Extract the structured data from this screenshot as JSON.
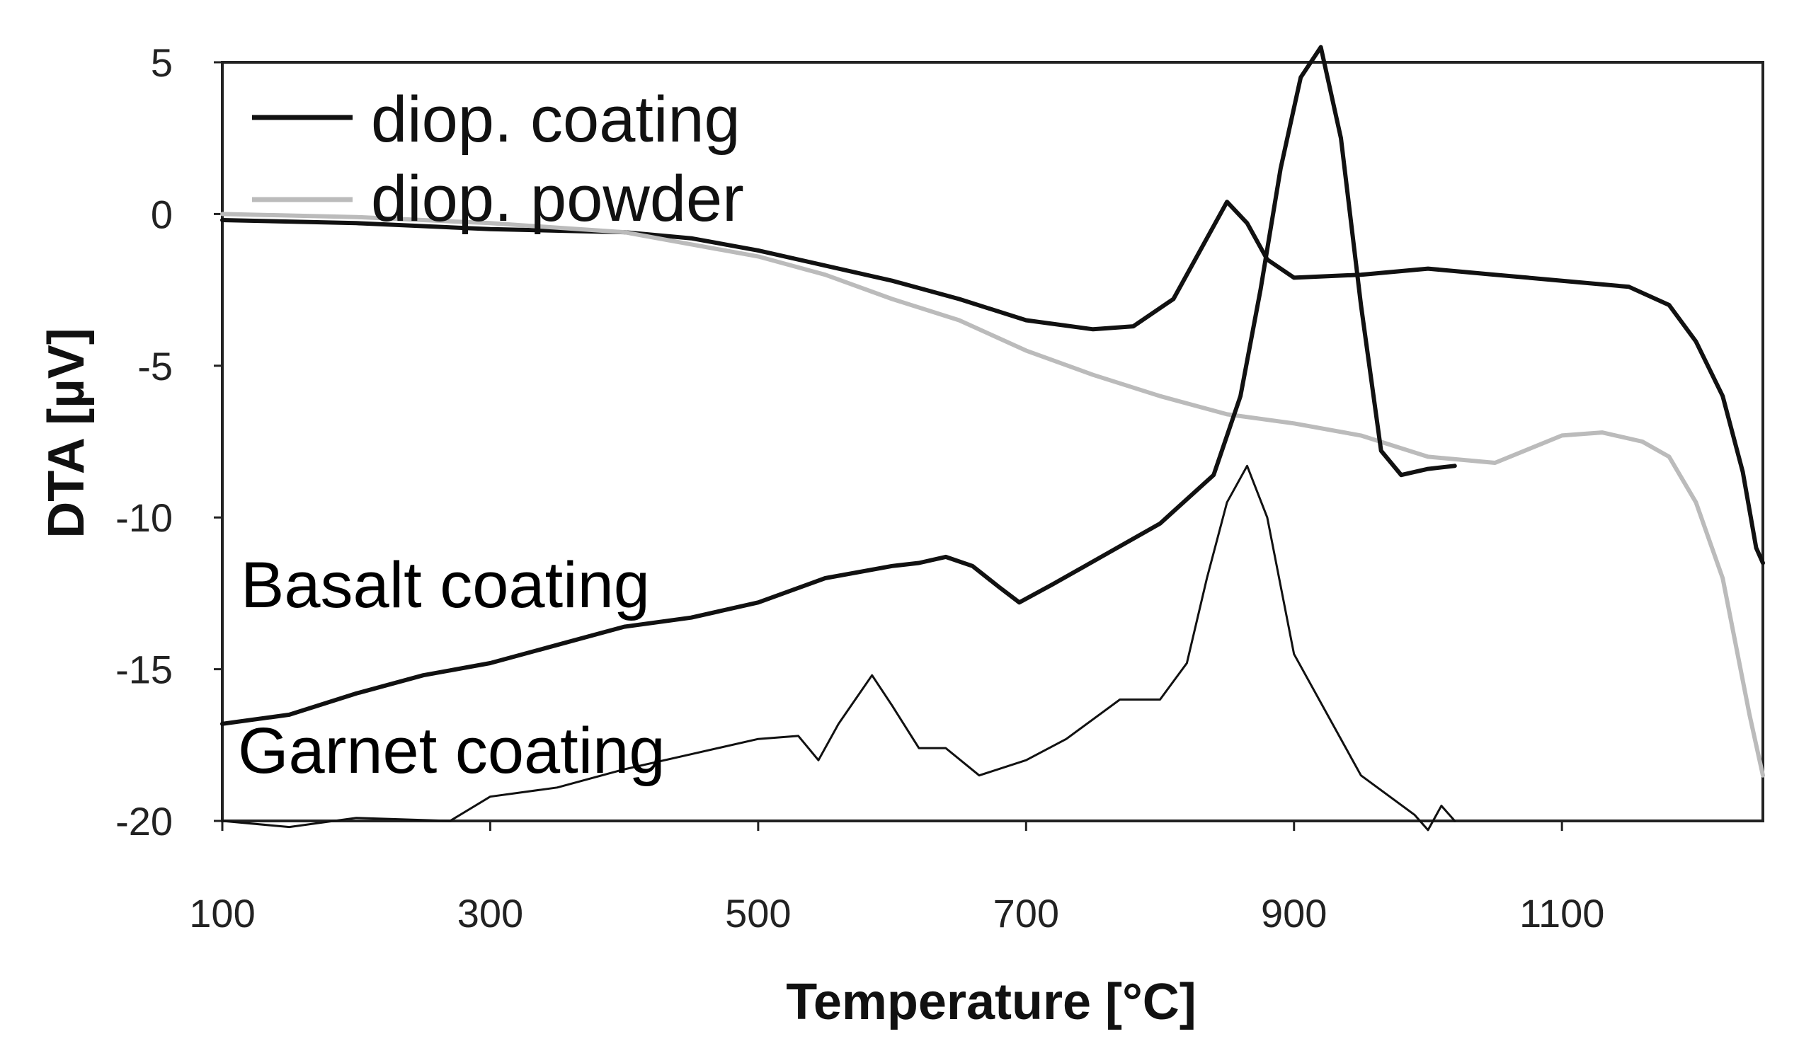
{
  "chart_data": {
    "type": "line",
    "title": "",
    "xlabel": "Temperature [°C]",
    "ylabel": "DTA [µV]",
    "xlim": [
      100,
      1250
    ],
    "ylim": [
      -20,
      5
    ],
    "xticks": [
      100,
      300,
      500,
      700,
      900,
      1100
    ],
    "yticks": [
      5,
      0,
      -5,
      -10,
      -15,
      -20
    ],
    "legend": {
      "placement": "top-left",
      "entries": [
        "diop. coating",
        "diop. powder"
      ]
    },
    "annotations": [
      {
        "text": "Basalt coating",
        "target": "basalt-coating"
      },
      {
        "text": "Garnet coating",
        "target": "garnet-coating"
      }
    ],
    "series": [
      {
        "name": "diop. coating",
        "id": "diop-coating",
        "color": "#111111",
        "width": 6,
        "x": [
          100,
          200,
          300,
          400,
          450,
          500,
          550,
          600,
          650,
          700,
          750,
          780,
          810,
          835,
          850,
          865,
          880,
          900,
          950,
          1000,
          1050,
          1100,
          1150,
          1180,
          1200,
          1220,
          1235,
          1245,
          1250
        ],
        "y": [
          -0.2,
          -0.3,
          -0.5,
          -0.6,
          -0.8,
          -1.2,
          -1.7,
          -2.2,
          -2.8,
          -3.5,
          -3.8,
          -3.7,
          -2.8,
          -0.8,
          0.4,
          -0.3,
          -1.5,
          -2.1,
          -2.0,
          -1.8,
          -2.0,
          -2.2,
          -2.4,
          -3.0,
          -4.2,
          -6.0,
          -8.5,
          -11.0,
          -11.5
        ]
      },
      {
        "name": "diop. powder",
        "id": "diop-powder",
        "color": "#bbbbbb",
        "width": 6,
        "x": [
          100,
          200,
          300,
          400,
          450,
          500,
          550,
          600,
          650,
          700,
          750,
          800,
          850,
          900,
          950,
          1000,
          1050,
          1100,
          1130,
          1160,
          1180,
          1200,
          1220,
          1240,
          1250
        ],
        "y": [
          0.0,
          -0.1,
          -0.3,
          -0.6,
          -1.0,
          -1.4,
          -2.0,
          -2.8,
          -3.5,
          -4.5,
          -5.3,
          -6.0,
          -6.6,
          -6.9,
          -7.3,
          -8.0,
          -8.2,
          -7.3,
          -7.2,
          -7.5,
          -8.0,
          -9.5,
          -12.0,
          -16.5,
          -18.5
        ]
      },
      {
        "name": "Basalt coating",
        "id": "basalt-coating",
        "color": "#111111",
        "width": 6,
        "x": [
          100,
          150,
          200,
          250,
          300,
          350,
          400,
          450,
          500,
          550,
          600,
          620,
          640,
          660,
          680,
          695,
          720,
          760,
          800,
          840,
          860,
          875,
          890,
          905,
          920,
          935,
          950,
          965,
          980,
          1000,
          1020
        ],
        "y": [
          -16.8,
          -16.5,
          -15.8,
          -15.2,
          -14.8,
          -14.2,
          -13.6,
          -13.3,
          -12.8,
          -12.0,
          -11.6,
          -11.5,
          -11.3,
          -11.6,
          -12.3,
          -12.8,
          -12.2,
          -11.2,
          -10.2,
          -8.6,
          -6.0,
          -2.5,
          1.5,
          4.5,
          5.5,
          2.5,
          -3.0,
          -7.8,
          -8.6,
          -8.4,
          -8.3
        ]
      },
      {
        "name": "Garnet coating",
        "id": "garnet-coating",
        "color": "#111111",
        "width": 3,
        "x": [
          100,
          150,
          200,
          270,
          300,
          350,
          400,
          450,
          500,
          530,
          545,
          560,
          585,
          600,
          620,
          640,
          665,
          700,
          730,
          770,
          800,
          820,
          835,
          850,
          865,
          880,
          900,
          950,
          990,
          1000,
          1010,
          1020
        ],
        "y": [
          -20.0,
          -20.2,
          -19.9,
          -20.0,
          -19.2,
          -18.9,
          -18.3,
          -17.8,
          -17.3,
          -17.2,
          -18.0,
          -16.8,
          -15.2,
          -16.2,
          -17.6,
          -17.6,
          -18.5,
          -18.0,
          -17.3,
          -16.0,
          -16.0,
          -14.8,
          -12.0,
          -9.5,
          -8.3,
          -10.0,
          -14.5,
          -18.5,
          -19.8,
          -20.3,
          -19.5,
          -20.0
        ]
      }
    ]
  }
}
